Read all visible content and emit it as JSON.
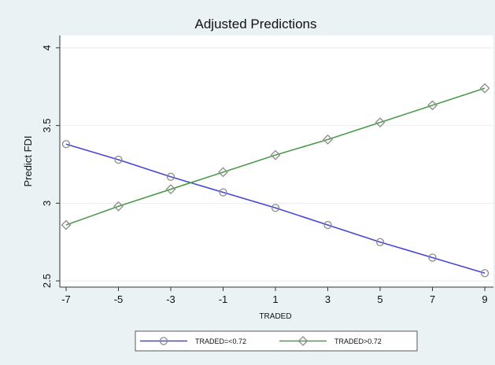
{
  "chart_data": {
    "type": "line",
    "title": "Adjusted Predictions",
    "xlabel": "TRADED",
    "ylabel": "Predict FDI",
    "x": [
      -7,
      -5,
      -3,
      -1,
      1,
      3,
      5,
      7,
      9
    ],
    "series": [
      {
        "name": "TRADED=<0.72",
        "color": "#4646d8",
        "marker": "circle",
        "values": [
          3.38,
          3.28,
          3.17,
          3.07,
          2.97,
          2.86,
          2.75,
          2.65,
          2.55
        ]
      },
      {
        "name": "TRADED>0.72",
        "color": "#4c9a4c",
        "marker": "diamond",
        "values": [
          2.86,
          2.98,
          3.09,
          3.2,
          3.31,
          3.41,
          3.52,
          3.63,
          3.74
        ]
      }
    ],
    "xlim": [
      -7.24,
      9.33
    ],
    "ylim": [
      2.46,
      4.08
    ],
    "xticks": [
      -7,
      -5,
      -3,
      -1,
      1,
      3,
      5,
      7,
      9
    ],
    "yticks": [
      2.5,
      3,
      3.5,
      4
    ],
    "grid": true,
    "legend": "bottom"
  }
}
